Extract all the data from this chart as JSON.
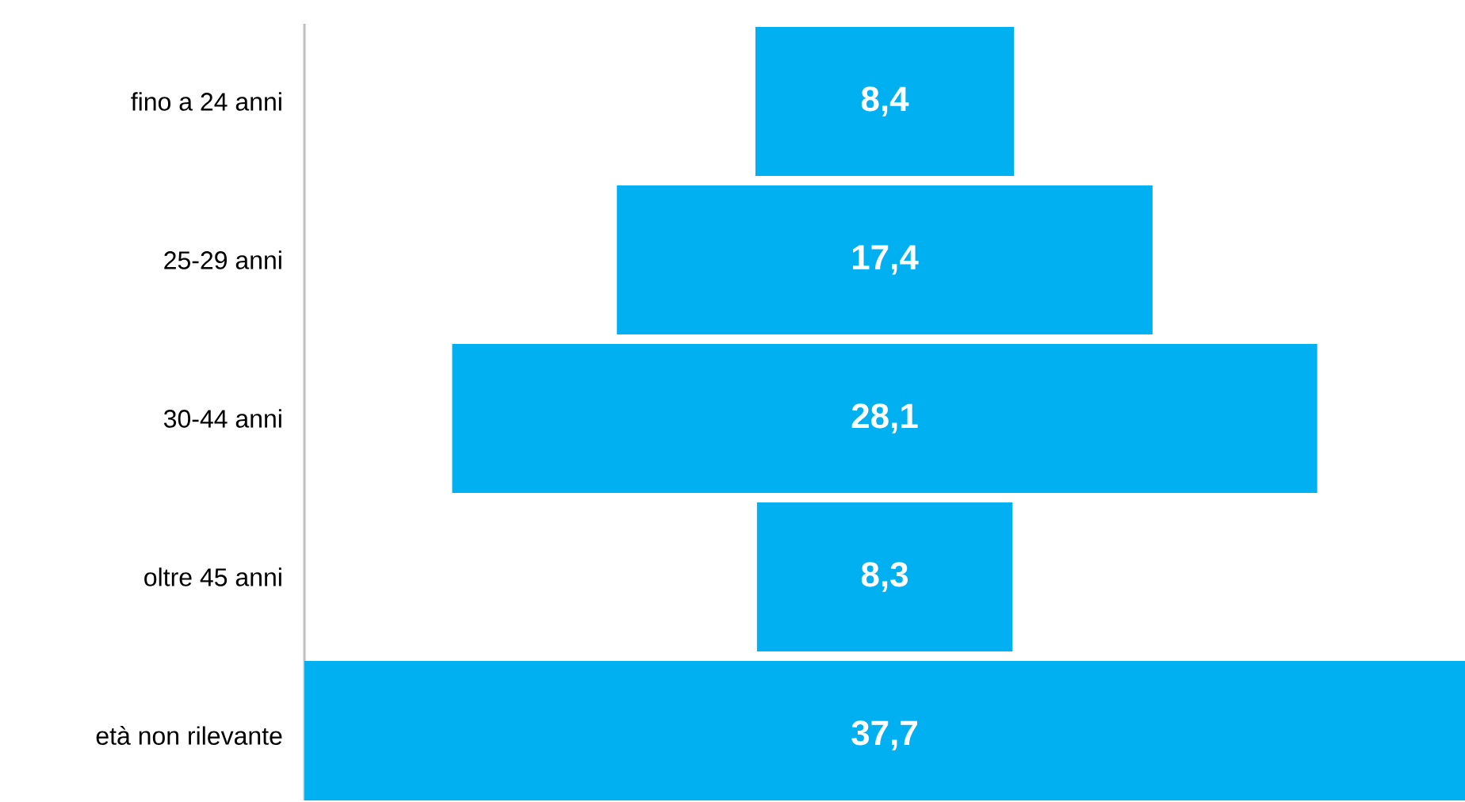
{
  "chart_data": {
    "type": "other",
    "categories": [
      "fino a 24 anni",
      "25-29 anni",
      "30-44 anni",
      "oltre 45 anni",
      "età non rilevante"
    ],
    "values": [
      8.4,
      17.4,
      28.1,
      8.3,
      37.7
    ],
    "color": "#00b0f0",
    "value_labels": [
      "8,4",
      "17,4",
      "28,1",
      "8,3",
      "37,7"
    ]
  }
}
